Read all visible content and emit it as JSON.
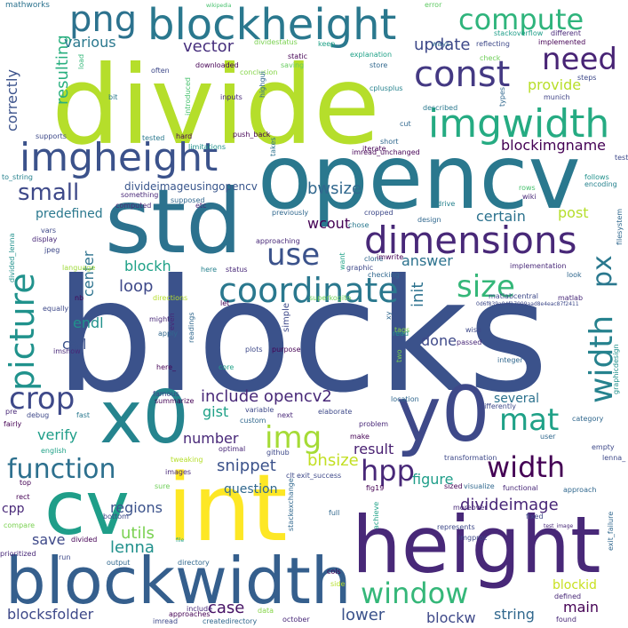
{
  "words": [
    {
      "text": "blocks",
      "color": "#3b528b"
    },
    {
      "text": "divide",
      "color": "#b5de2b"
    },
    {
      "text": "opencv",
      "color": "#2a788e"
    },
    {
      "text": "std",
      "color": "#2c728e"
    },
    {
      "text": "int",
      "color": "#fde725"
    },
    {
      "text": "height",
      "color": "#482878"
    },
    {
      "text": "blockwidth",
      "color": "#355f8d"
    },
    {
      "text": "x0",
      "color": "#25848e"
    },
    {
      "text": "y0",
      "color": "#3e4989"
    },
    {
      "text": "cv",
      "color": "#1f9e89"
    },
    {
      "text": "blockheight",
      "color": "#2a788e"
    },
    {
      "text": "dimensions",
      "color": "#482878"
    },
    {
      "text": "imgheight",
      "color": "#3b528b"
    },
    {
      "text": "imgwidth",
      "color": "#25ab82"
    },
    {
      "text": "const",
      "color": "#443983"
    },
    {
      "text": "picture",
      "color": "#20928c"
    },
    {
      "text": "width",
      "color": "#26828e"
    },
    {
      "text": "coordinate",
      "color": "#2a788e"
    },
    {
      "text": "function",
      "color": "#2d708e"
    },
    {
      "text": "window",
      "color": "#35b779"
    },
    {
      "text": "png",
      "color": "#2c728e"
    },
    {
      "text": "compute",
      "color": "#2fb47c"
    },
    {
      "text": "need",
      "color": "#482475"
    },
    {
      "text": "use",
      "color": "#3b528b"
    },
    {
      "text": "size",
      "color": "#35b779"
    },
    {
      "text": "crop",
      "color": "#3e4989"
    },
    {
      "text": "img",
      "color": "#a5db36"
    },
    {
      "text": "mat",
      "color": "#1fa187"
    },
    {
      "text": "px",
      "color": "#2a788e"
    },
    {
      "text": "hpp",
      "color": "#482878"
    },
    {
      "text": "small",
      "color": "#3e4989"
    },
    {
      "text": "width",
      "color": "#440154"
    },
    {
      "text": "lenna",
      "color": "#21918c"
    },
    {
      "text": "bwsize",
      "color": "#31688e"
    },
    {
      "text": "resulting",
      "color": "#29af7f"
    },
    {
      "text": "correctly",
      "color": "#3b528b"
    },
    {
      "text": "vector",
      "color": "#472f7d"
    },
    {
      "text": "update",
      "color": "#3e4989"
    },
    {
      "text": "various",
      "color": "#2a788e"
    },
    {
      "text": "provide",
      "color": "#b8de29"
    },
    {
      "text": "blockimgname",
      "color": "#440154"
    },
    {
      "text": "include opencv2",
      "color": "#482878"
    },
    {
      "text": "snippet",
      "color": "#3b528b"
    },
    {
      "text": "divideimage",
      "color": "#482677"
    },
    {
      "text": "blockh",
      "color": "#1fa187"
    },
    {
      "text": "loop",
      "color": "#3e4989"
    },
    {
      "text": "endl",
      "color": "#21918c"
    },
    {
      "text": "center",
      "color": "#2c728e"
    },
    {
      "text": "call",
      "color": "#3b528b"
    },
    {
      "text": "verify",
      "color": "#1f9e89"
    },
    {
      "text": "init",
      "color": "#2c728e"
    },
    {
      "text": "answer",
      "color": "#2c728e"
    },
    {
      "text": "certain",
      "color": "#2c728e"
    },
    {
      "text": "post",
      "color": "#b5de2b"
    },
    {
      "text": "predefined",
      "color": "#2a788e"
    },
    {
      "text": "wcout",
      "color": "#440154"
    },
    {
      "text": "divideimageusingopencv",
      "color": "#39568c"
    },
    {
      "text": "gist",
      "color": "#1fa187"
    },
    {
      "text": "number",
      "color": "#482878"
    },
    {
      "text": "done",
      "color": "#3e4989"
    },
    {
      "text": "bhsize",
      "color": "#c2df23"
    },
    {
      "text": "result",
      "color": "#481f71"
    },
    {
      "text": "figure",
      "color": "#1f9e89"
    },
    {
      "text": "question",
      "color": "#31688e"
    },
    {
      "text": "regions",
      "color": "#3b528b"
    },
    {
      "text": "utils",
      "color": "#7ad151"
    },
    {
      "text": "save",
      "color": "#3e4989"
    },
    {
      "text": "cpp",
      "color": "#482878"
    },
    {
      "text": "blocksfolder",
      "color": "#3e4989"
    },
    {
      "text": "case",
      "color": "#471365"
    },
    {
      "text": "lower",
      "color": "#3b528b"
    },
    {
      "text": "blockw",
      "color": "#3e4989"
    },
    {
      "text": "string",
      "color": "#31688e"
    },
    {
      "text": "main",
      "color": "#440154"
    },
    {
      "text": "blockid",
      "color": "#c8e020"
    },
    {
      "text": "several",
      "color": "#2c728e"
    },
    {
      "text": "mathworks",
      "color": "#2c728e"
    },
    {
      "text": "wikipedia",
      "color": "#48c16e"
    },
    {
      "text": "error",
      "color": "#5ec962"
    },
    {
      "text": "stackoverflow",
      "color": "#1f9e89"
    },
    {
      "text": "different",
      "color": "#482878"
    },
    {
      "text": "implemented",
      "color": "#440154"
    },
    {
      "text": "keep",
      "color": "#1fa187"
    },
    {
      "text": "ways",
      "color": "#31688e"
    },
    {
      "text": "reflecting",
      "color": "#3e4989"
    },
    {
      "text": "explanation",
      "color": "#1fa187"
    },
    {
      "text": "check",
      "color": "#6ece58"
    },
    {
      "text": "store",
      "color": "#31688e"
    },
    {
      "text": "steps",
      "color": "#3e4989"
    },
    {
      "text": "munich",
      "color": "#414487"
    },
    {
      "text": "dividestatus",
      "color": "#7ad151"
    },
    {
      "text": "static",
      "color": "#440154"
    },
    {
      "text": "saving",
      "color": "#65cb5e"
    },
    {
      "text": "conclusion",
      "color": "#86d549"
    },
    {
      "text": "downloaded",
      "color": "#440154"
    },
    {
      "text": "often",
      "color": "#3e4989"
    },
    {
      "text": "load",
      "color": "#35b779"
    },
    {
      "text": "highgui",
      "color": "#31688e"
    },
    {
      "text": "introduced",
      "color": "#48c16e"
    },
    {
      "text": "inputs",
      "color": "#482878"
    },
    {
      "text": "bit",
      "color": "#2a788e"
    },
    {
      "text": "cplusplus",
      "color": "#26828e"
    },
    {
      "text": "described",
      "color": "#2a788e"
    },
    {
      "text": "types",
      "color": "#31688e"
    },
    {
      "text": "supports",
      "color": "#3e4989"
    },
    {
      "text": "tested",
      "color": "#2a788e"
    },
    {
      "text": "push_back",
      "color": "#440154"
    },
    {
      "text": "limitations",
      "color": "#21918c"
    },
    {
      "text": "hard",
      "color": "#440154"
    },
    {
      "text": "iterate",
      "color": "#440154"
    },
    {
      "text": "imread_unchanged",
      "color": "#440154"
    },
    {
      "text": "short",
      "color": "#31688e"
    },
    {
      "text": "takes",
      "color": "#2c728e"
    },
    {
      "text": "cut",
      "color": "#31688e"
    },
    {
      "text": "to_string",
      "color": "#26828e"
    },
    {
      "text": "follows",
      "color": "#21918c"
    },
    {
      "text": "encoding",
      "color": "#26828e"
    },
    {
      "text": "test",
      "color": "#3e4989"
    },
    {
      "text": "something",
      "color": "#482878"
    },
    {
      "text": "supposed",
      "color": "#31688e"
    },
    {
      "text": "computed",
      "color": "#482878"
    },
    {
      "text": "etc",
      "color": "#482878"
    },
    {
      "text": "previously",
      "color": "#31688e"
    },
    {
      "text": "approaching",
      "color": "#482878"
    },
    {
      "text": "chose",
      "color": "#2a788e"
    },
    {
      "text": "cropped",
      "color": "#3e4989"
    },
    {
      "text": "design",
      "color": "#31688e"
    },
    {
      "text": "drive",
      "color": "#26828e"
    },
    {
      "text": "rows",
      "color": "#48c16e"
    },
    {
      "text": "wiki",
      "color": "#482878"
    },
    {
      "text": "filesystem",
      "color": "#31688e"
    },
    {
      "text": "divided_lenna",
      "color": "#21918c"
    },
    {
      "text": "vars",
      "color": "#3e4989"
    },
    {
      "text": "display",
      "color": "#482878"
    },
    {
      "text": "jpeg",
      "color": "#3e4989"
    },
    {
      "text": "language",
      "color": "#9fda3a"
    },
    {
      "text": "here",
      "color": "#26828e"
    },
    {
      "text": "status",
      "color": "#482878"
    },
    {
      "text": "want",
      "color": "#1fa187"
    },
    {
      "text": "graphic",
      "color": "#3e4989"
    },
    {
      "text": "clone",
      "color": "#31688e"
    },
    {
      "text": "imwrite",
      "color": "#440154"
    },
    {
      "text": "implementation",
      "color": "#482878"
    },
    {
      "text": "look",
      "color": "#31688e"
    },
    {
      "text": "matlabcentral",
      "color": "#3e4989"
    },
    {
      "text": "matlab",
      "color": "#482878"
    },
    {
      "text": "checking",
      "color": "#31688e"
    },
    {
      "text": "0d6f839a04f17999aad8e4eac87f2411",
      "color": "#3e4989"
    },
    {
      "text": "nb",
      "color": "#440154"
    },
    {
      "text": "equally",
      "color": "#3e4989"
    },
    {
      "text": "directions",
      "color": "#b5de2b"
    },
    {
      "text": "superkogito",
      "color": "#6ece58"
    },
    {
      "text": "let",
      "color": "#440154"
    },
    {
      "text": "even",
      "color": "#482878"
    },
    {
      "text": "readings",
      "color": "#31688e"
    },
    {
      "text": "simple",
      "color": "#3e4989"
    },
    {
      "text": "xy",
      "color": "#31688e"
    },
    {
      "text": "tags",
      "color": "#86d549"
    },
    {
      "text": "wise",
      "color": "#3e4989"
    },
    {
      "text": "read",
      "color": "#21918c"
    },
    {
      "text": "passed",
      "color": "#482878"
    },
    {
      "text": "might",
      "color": "#482878"
    },
    {
      "text": "purpose",
      "color": "#440154"
    },
    {
      "text": "two",
      "color": "#7ad151"
    },
    {
      "text": "apply",
      "color": "#31688e"
    },
    {
      "text": "plots",
      "color": "#3e4989"
    },
    {
      "text": "integer",
      "color": "#31688e"
    },
    {
      "text": "imshow",
      "color": "#482878"
    },
    {
      "text": "here_",
      "color": "#440154"
    },
    {
      "text": "core",
      "color": "#1fa187"
    },
    {
      "text": "graphicdesign",
      "color": "#21918c"
    },
    {
      "text": "famous",
      "color": "#3e4989"
    },
    {
      "text": "summarize",
      "color": "#440154"
    },
    {
      "text": "location",
      "color": "#31688e"
    },
    {
      "text": "differently",
      "color": "#3e4989"
    },
    {
      "text": "pre",
      "color": "#482878"
    },
    {
      "text": "debug",
      "color": "#3e4989"
    },
    {
      "text": "fast",
      "color": "#2a788e"
    },
    {
      "text": "next",
      "color": "#482878"
    },
    {
      "text": "variable",
      "color": "#3e4989"
    },
    {
      "text": "elaborate",
      "color": "#3e4989"
    },
    {
      "text": "fairly",
      "color": "#440154"
    },
    {
      "text": "custom",
      "color": "#31688e"
    },
    {
      "text": "problem",
      "color": "#482878"
    },
    {
      "text": "make",
      "color": "#440154"
    },
    {
      "text": "user",
      "color": "#31688e"
    },
    {
      "text": "category",
      "color": "#31688e"
    },
    {
      "text": "empty",
      "color": "#3e4989"
    },
    {
      "text": "english",
      "color": "#1fa187"
    },
    {
      "text": "optimal",
      "color": "#482878"
    },
    {
      "text": "github",
      "color": "#3e4989"
    },
    {
      "text": "tweaking",
      "color": "#b5de2b"
    },
    {
      "text": "images",
      "color": "#482878"
    },
    {
      "text": "clt",
      "color": "#3e4989"
    },
    {
      "text": "exit_success",
      "color": "#3e4989"
    },
    {
      "text": "transformation",
      "color": "#3e4989"
    },
    {
      "text": "visualize",
      "color": "#31688e"
    },
    {
      "text": "lenna_",
      "color": "#3e4989"
    },
    {
      "text": "top",
      "color": "#440154"
    },
    {
      "text": "sure",
      "color": "#6ece58"
    },
    {
      "text": "fig19",
      "color": "#440154"
    },
    {
      "text": "functional",
      "color": "#482878"
    },
    {
      "text": "approach",
      "color": "#31688e"
    },
    {
      "text": "rect",
      "color": "#440154"
    },
    {
      "text": "bottom",
      "color": "#3e4989"
    },
    {
      "text": "sized",
      "color": "#440154"
    },
    {
      "text": "stackexchange",
      "color": "#31688e"
    },
    {
      "text": "full",
      "color": "#31688e"
    },
    {
      "text": "achieve",
      "color": "#1fa187"
    },
    {
      "text": "moreover",
      "color": "#482878"
    },
    {
      "text": "fixed",
      "color": "#3e4989"
    },
    {
      "text": "exit_failure",
      "color": "#31688e"
    },
    {
      "text": "compare",
      "color": "#7ad151"
    },
    {
      "text": "divided",
      "color": "#440154"
    },
    {
      "text": "file",
      "color": "#1fa187"
    },
    {
      "text": "represents",
      "color": "#3e4989"
    },
    {
      "text": "imgproc",
      "color": "#3e4989"
    },
    {
      "text": "test_image",
      "color": "#482878"
    },
    {
      "text": "prioritized",
      "color": "#482878"
    },
    {
      "text": "run",
      "color": "#3e4989"
    },
    {
      "text": "output",
      "color": "#31688e"
    },
    {
      "text": "directory",
      "color": "#31688e"
    },
    {
      "text": "cols",
      "color": "#440154"
    },
    {
      "text": "side",
      "color": "#b5de2b"
    },
    {
      "text": "defined",
      "color": "#482878"
    },
    {
      "text": "approaches",
      "color": "#440154"
    },
    {
      "text": "include",
      "color": "#482878"
    },
    {
      "text": "imread",
      "color": "#3e4989"
    },
    {
      "text": "createdirectory",
      "color": "#31688e"
    },
    {
      "text": "data",
      "color": "#86d549"
    },
    {
      "text": "october",
      "color": "#482878"
    },
    {
      "text": "found",
      "color": "#482878"
    }
  ]
}
